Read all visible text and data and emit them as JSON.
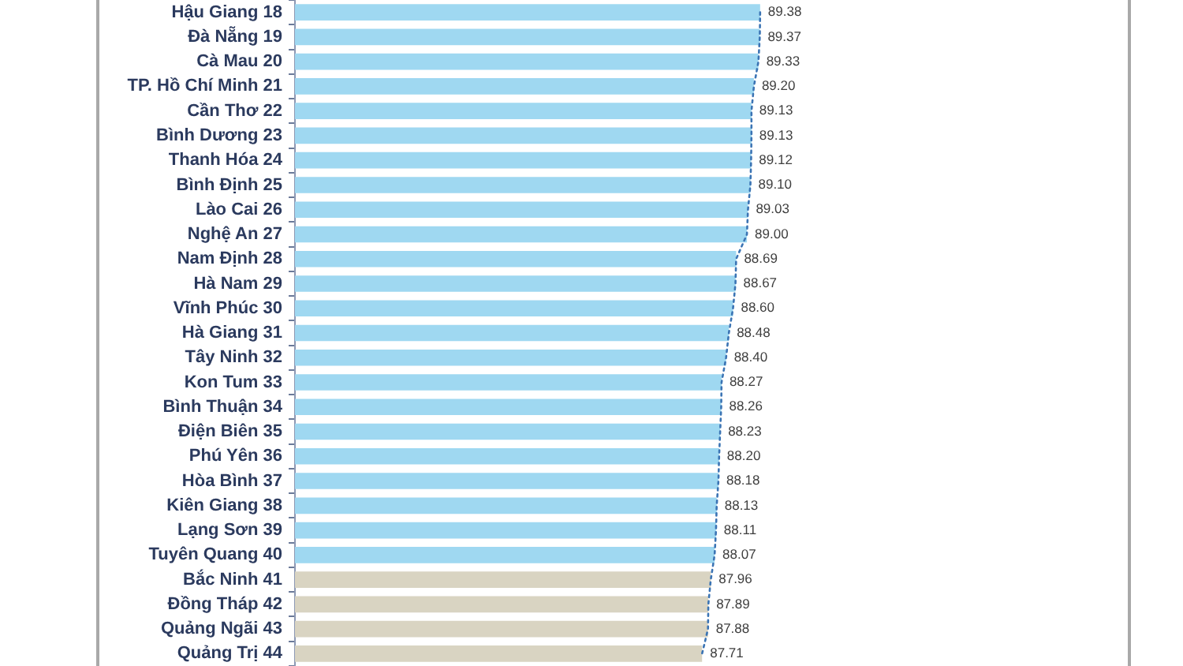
{
  "chart_data": {
    "type": "bar",
    "orientation": "horizontal",
    "categories": [
      "Hậu Giang 18",
      "Đà Nẵng 19",
      "Cà Mau 20",
      "TP. Hồ Chí Minh 21",
      "Cần Thơ 22",
      "Bình Dương 23",
      "Thanh Hóa 24",
      "Bình Định 25",
      "Lào Cai 26",
      "Nghệ An 27",
      "Nam Định 28",
      "Hà Nam 29",
      "Vĩnh Phúc 30",
      "Hà Giang 31",
      "Tây Ninh 32",
      "Kon Tum 33",
      "Bình Thuận 34",
      "Điện Biên 35",
      "Phú Yên 36",
      "Hòa Bình 37",
      "Kiên Giang 38",
      "Lạng Sơn 39",
      "Tuyên Quang 40",
      "Bắc Ninh 41",
      "Đồng Tháp 42",
      "Quảng Ngãi 43",
      "Quảng Trị 44"
    ],
    "series": [
      {
        "values": [
          89.38,
          89.37,
          89.33,
          89.2,
          89.13,
          89.13,
          89.12,
          89.1,
          89.03,
          89.0,
          88.69,
          88.67,
          88.6,
          88.48,
          88.4,
          88.27,
          88.26,
          88.23,
          88.2,
          88.18,
          88.13,
          88.11,
          88.07,
          87.96,
          87.89,
          87.88,
          87.71
        ],
        "colors": [
          "#9fd8f1",
          "#9fd8f1",
          "#9fd8f1",
          "#9fd8f1",
          "#9fd8f1",
          "#9fd8f1",
          "#9fd8f1",
          "#9fd8f1",
          "#9fd8f1",
          "#9fd8f1",
          "#9fd8f1",
          "#9fd8f1",
          "#9fd8f1",
          "#9fd8f1",
          "#9fd8f1",
          "#9fd8f1",
          "#9fd8f1",
          "#9fd8f1",
          "#9fd8f1",
          "#9fd8f1",
          "#9fd8f1",
          "#9fd8f1",
          "#9fd8f1",
          "#d9d4c2",
          "#d9d4c2",
          "#d9d4c2",
          "#d9d4c2"
        ],
        "value_labels": [
          "89.38",
          "89.37",
          "89.33",
          "89.20",
          "89.13",
          "89.13",
          "89.12",
          "89.10",
          "89.03",
          "89.00",
          "88.69",
          "88.67",
          "88.60",
          "88.48",
          "88.40",
          "88.27",
          "88.26",
          "88.23",
          "88.20",
          "88.18",
          "88.13",
          "88.11",
          "88.07",
          "87.96",
          "87.89",
          "87.88",
          "87.71"
        ]
      },
      {
        "type": "line",
        "color": "#3b74b4",
        "line_style": "dotted",
        "values": [
          89.38,
          89.37,
          89.33,
          89.2,
          89.13,
          89.13,
          89.12,
          89.1,
          89.03,
          89.0,
          88.69,
          88.67,
          88.6,
          88.48,
          88.4,
          88.27,
          88.26,
          88.23,
          88.2,
          88.18,
          88.13,
          88.11,
          88.07,
          87.96,
          87.89,
          87.88,
          87.71
        ]
      }
    ],
    "xlim": [
      76,
      100
    ],
    "tick_labels": "y"
  }
}
